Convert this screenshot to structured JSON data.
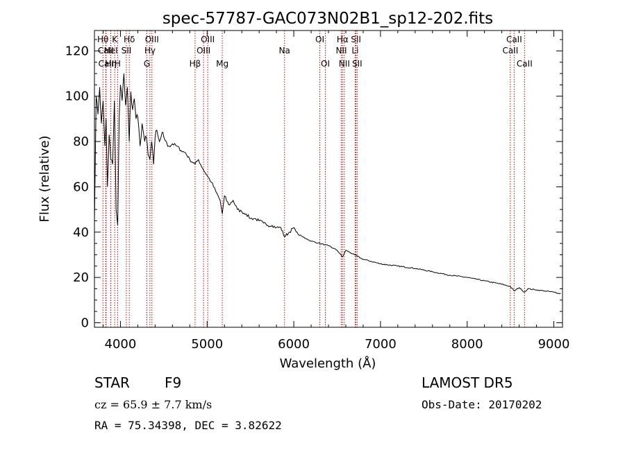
{
  "chart_data": {
    "type": "line",
    "title": "spec-57787-GAC073N02B1_sp12-202.fits",
    "xlabel": "Wavelength (Å)",
    "ylabel": "Flux (relative)",
    "xlim": [
      3700,
      9100
    ],
    "ylim": [
      -2,
      129
    ],
    "x_ticks": [
      4000,
      5000,
      6000,
      7000,
      8000,
      9000
    ],
    "y_ticks": [
      0,
      20,
      40,
      60,
      80,
      100,
      120
    ],
    "grid": false,
    "series": [
      {
        "x": [
          3700,
          3720,
          3740,
          3760,
          3780,
          3800,
          3820,
          3835,
          3850,
          3870,
          3890,
          3910,
          3930,
          3950,
          3968,
          3985,
          4000,
          4020,
          4040,
          4060,
          4080,
          4101,
          4120,
          4140,
          4160,
          4180,
          4200,
          4226,
          4250,
          4280,
          4300,
          4320,
          4340,
          4360,
          4383,
          4400,
          4420,
          4450,
          4480,
          4500,
          4530,
          4560,
          4600,
          4650,
          4700,
          4750,
          4800,
          4861,
          4900,
          4950,
          5000,
          5050,
          5100,
          5150,
          5175,
          5200,
          5250,
          5300,
          5350,
          5400,
          5450,
          5500,
          5550,
          5600,
          5650,
          5700,
          5750,
          5800,
          5850,
          5893,
          5950,
          6000,
          6050,
          6100,
          6150,
          6200,
          6300,
          6400,
          6500,
          6563,
          6600,
          6700,
          6800,
          6900,
          7000,
          7200,
          7400,
          7600,
          7800,
          8000,
          8200,
          8400,
          8498,
          8542,
          8600,
          8662,
          8700,
          8800,
          8900,
          9000,
          9050,
          9080
        ],
        "y": [
          45,
          100,
          92,
          104,
          88,
          98,
          78,
          90,
          60,
          83,
          72,
          70,
          98,
          50,
          43,
          90,
          105,
          98,
          110,
          96,
          104,
          80,
          102,
          94,
          99,
          90,
          91,
          78,
          88,
          80,
          82,
          74,
          72,
          80,
          70,
          82,
          85,
          80,
          84,
          82,
          80,
          78,
          79,
          78,
          76,
          75,
          72,
          70,
          72,
          68,
          65,
          62,
          58,
          54,
          48,
          56,
          52,
          54,
          50,
          49,
          48,
          46,
          46,
          45,
          44,
          43,
          43,
          42,
          42,
          38,
          40,
          42,
          39,
          38,
          37,
          36,
          35,
          34,
          32,
          29,
          32,
          30,
          28,
          27,
          26,
          25,
          24,
          22.5,
          21,
          20,
          18.5,
          17,
          16,
          14,
          15.5,
          13.5,
          15,
          14.5,
          14,
          13.5,
          13,
          13
        ]
      }
    ],
    "line_markers": [
      {
        "label": "Hθ",
        "x": 3798,
        "row": 0
      },
      {
        "label": "CaII",
        "x": 3830,
        "row": 1
      },
      {
        "label": "CaII",
        "x": 3835,
        "row": 2
      },
      {
        "label": "K",
        "x": 3934,
        "row": 0
      },
      {
        "label": "HeI",
        "x": 3889,
        "row": 1
      },
      {
        "label": "Hη",
        "x": 3889,
        "row": 2
      },
      {
        "label": "Hδ",
        "x": 4102,
        "row": 0
      },
      {
        "label": "SII",
        "x": 4068,
        "row": 1
      },
      {
        "label": "H",
        "x": 3968,
        "row": 2
      },
      {
        "label": "OIII",
        "x": 4363,
        "row": 0
      },
      {
        "label": "Hγ",
        "x": 4340,
        "row": 1
      },
      {
        "label": "G",
        "x": 4305,
        "row": 2
      },
      {
        "label": "OIII",
        "x": 5007,
        "row": 0
      },
      {
        "label": "OIII",
        "x": 4959,
        "row": 1
      },
      {
        "label": "Hβ",
        "x": 4861,
        "row": 2
      },
      {
        "label": "Mg",
        "x": 5175,
        "row": 2
      },
      {
        "label": "Na",
        "x": 5893,
        "row": 1
      },
      {
        "label": "OI",
        "x": 6300,
        "row": 0
      },
      {
        "label": "OI",
        "x": 6364,
        "row": 2
      },
      {
        "label": "Hα",
        "x": 6563,
        "row": 0
      },
      {
        "label": "NII",
        "x": 6548,
        "row": 1
      },
      {
        "label": "NII",
        "x": 6583,
        "row": 2
      },
      {
        "label": "SII",
        "x": 6717,
        "row": 0
      },
      {
        "label": "Li",
        "x": 6708,
        "row": 1
      },
      {
        "label": "SII",
        "x": 6731,
        "row": 2
      },
      {
        "label": "CaII",
        "x": 8542,
        "row": 0
      },
      {
        "label": "CaII",
        "x": 8498,
        "row": 1
      },
      {
        "label": "CaII",
        "x": 8662,
        "row": 2
      }
    ]
  },
  "info": {
    "class_label": "STAR",
    "subclass": "F9",
    "survey": "LAMOST DR5",
    "cz": "cz = 65.9 ± 7.7 km/s",
    "obs_date": "Obs-Date: 20170202",
    "radec": "RA =  75.34398, DEC =   3.82622"
  }
}
